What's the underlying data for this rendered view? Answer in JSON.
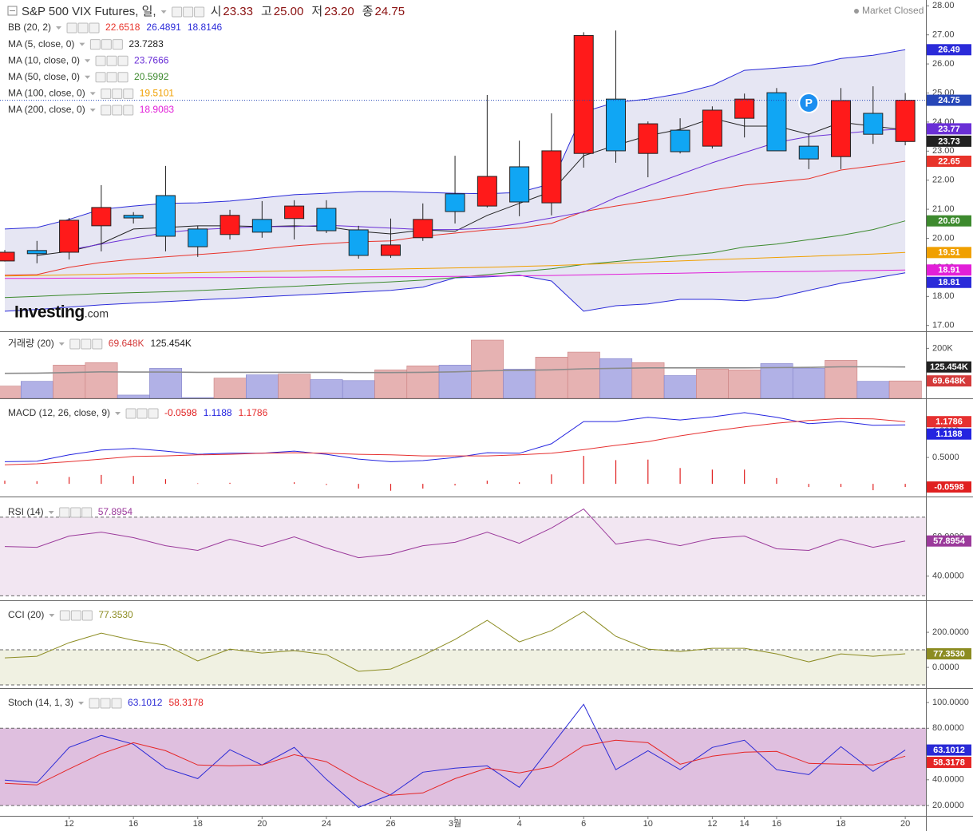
{
  "status": "Market Closed",
  "logo": [
    "Investing",
    ".com"
  ],
  "marker": {
    "label": "P"
  },
  "chart_data": [
    {
      "type": "candlestick",
      "title": "S&P 500 VIX Futures, 일,",
      "ohlc_labels": [
        {
          "name": "시",
          "label": "23.33"
        },
        {
          "name": "고",
          "label": "25.00"
        },
        {
          "name": "저",
          "label": "23.20"
        },
        {
          "name": "종",
          "label": "24.75"
        }
      ],
      "categories": [
        null,
        null,
        "12",
        null,
        "16",
        null,
        "18",
        null,
        "20",
        null,
        "24",
        null,
        "26",
        null,
        "3월",
        null,
        "4",
        null,
        "6",
        null,
        "10",
        null,
        "12",
        "14",
        "16",
        null,
        "18",
        null,
        "20"
      ],
      "open": [
        19.22,
        19.58,
        19.52,
        20.43,
        20.79,
        21.47,
        20.32,
        20.13,
        20.65,
        20.68,
        21.03,
        20.29,
        19.41,
        20.02,
        21.53,
        21.11,
        22.46,
        21.22,
        22.92,
        24.79,
        22.92,
        23.72,
        23.17,
        24.13,
        25.01,
        23.17,
        22.81,
        24.3,
        23.33
      ],
      "high": [
        19.6,
        19.91,
        20.7,
        21.83,
        20.9,
        22.49,
        20.43,
        20.98,
        21.28,
        21.31,
        21.31,
        20.43,
        20.68,
        21.2,
        22.84,
        24.93,
        23.36,
        24.3,
        27.09,
        27.15,
        24.02,
        24.13,
        24.54,
        24.98,
        25.17,
        23.61,
        25.17,
        25.23,
        25.0
      ],
      "low": [
        19.2,
        19.14,
        19.27,
        19.55,
        20.51,
        19.55,
        19.36,
        19.96,
        20.02,
        19.96,
        20.18,
        19.3,
        19.33,
        19.91,
        20.51,
        21.06,
        20.76,
        20.79,
        22.43,
        22.6,
        22.1,
        22.92,
        23.09,
        23.47,
        23.01,
        22.38,
        22.38,
        23.25,
        23.2
      ],
      "close": [
        19.52,
        19.47,
        20.62,
        21.06,
        20.7,
        20.07,
        19.71,
        20.79,
        20.21,
        21.11,
        20.26,
        19.41,
        19.77,
        20.65,
        20.92,
        22.13,
        21.25,
        23.01,
        26.98,
        23.01,
        23.94,
        22.98,
        24.41,
        24.79,
        23.01,
        22.73,
        24.74,
        23.58,
        24.75
      ],
      "up_color": "#ff1a1a",
      "down_color": "#10a6f4",
      "price_line_color": "#2747b8",
      "ylim": [
        16.8,
        28.2
      ],
      "yticks": [
        {
          "value": 17,
          "label": "17.00"
        },
        {
          "value": 18,
          "label": "18.00"
        },
        {
          "value": 19,
          "label": "19.00"
        },
        {
          "value": 20,
          "label": "20.00"
        },
        {
          "value": 21,
          "label": "21.00"
        },
        {
          "value": 22,
          "label": "22.00"
        },
        {
          "value": 23,
          "label": "23.00"
        },
        {
          "value": 24,
          "label": "24.00"
        },
        {
          "value": 25,
          "label": "25.00"
        },
        {
          "value": 26,
          "label": "26.00"
        },
        {
          "value": 27,
          "label": "27.00"
        },
        {
          "value": 28,
          "label": "28.00"
        }
      ],
      "overlays": [
        {
          "name": "BB (20, 2)",
          "fill": "#e6e6f3",
          "series": [
            {
              "color": "#e8332a",
              "axis_label": "22.65",
              "values": [
                18.73,
                18.75,
                19.0,
                19.17,
                19.28,
                19.36,
                19.44,
                19.52,
                19.63,
                19.74,
                19.82,
                19.88,
                19.91,
                20.07,
                20.18,
                20.29,
                20.35,
                20.51,
                20.92,
                21.11,
                21.28,
                21.47,
                21.66,
                21.83,
                21.94,
                22.05,
                22.35,
                22.49,
                22.6518
              ]
            },
            {
              "color": "#2b2bd9",
              "axis_label": "26.49",
              "values": [
                20.32,
                20.37,
                20.65,
                21.0,
                21.11,
                21.2,
                21.22,
                21.28,
                21.39,
                21.5,
                21.55,
                21.61,
                21.61,
                21.58,
                21.55,
                21.53,
                21.58,
                21.88,
                24.35,
                24.68,
                24.79,
                24.98,
                25.26,
                25.78,
                25.86,
                25.94,
                26.19,
                26.3,
                26.4891
              ]
            },
            {
              "color": "#2b2bd9",
              "axis_label": "18.81",
              "values": [
                17.49,
                17.55,
                17.63,
                17.71,
                17.77,
                17.82,
                17.88,
                17.93,
                17.99,
                18.04,
                18.1,
                18.15,
                18.21,
                18.32,
                18.64,
                18.67,
                18.73,
                18.53,
                17.49,
                17.68,
                17.74,
                17.9,
                17.9,
                17.85,
                17.96,
                18.21,
                18.45,
                18.62,
                18.8146
              ]
            }
          ]
        },
        {
          "name": "MA (5, close, 0)",
          "series": [
            {
              "color": "#222222",
              "axis_label": "23.73",
              "values": [
                null,
                19.41,
                19.55,
                19.82,
                20.32,
                20.37,
                20.43,
                20.43,
                20.4,
                20.43,
                20.4,
                20.24,
                20.15,
                20.29,
                20.24,
                20.79,
                21.2,
                21.61,
                22.84,
                23.2,
                23.53,
                23.75,
                24.13,
                23.86,
                23.86,
                23.58,
                23.99,
                23.86,
                23.7283
              ]
            }
          ]
        },
        {
          "name": "MA (10, close, 0)",
          "series": [
            {
              "color": "#6a2fd6",
              "axis_label": "23.77",
              "values": [
                null,
                null,
                19.6,
                19.8,
                20.0,
                20.2,
                20.3,
                20.35,
                20.4,
                20.4,
                20.45,
                20.4,
                20.35,
                20.3,
                20.3,
                20.35,
                20.5,
                20.7,
                20.9,
                21.4,
                21.8,
                22.2,
                22.6,
                22.95,
                23.3,
                23.5,
                23.6,
                23.7,
                23.7666
              ]
            }
          ]
        },
        {
          "name": "MA (50, close, 0)",
          "series": [
            {
              "color": "#3d8a2e",
              "axis_label": "20.60",
              "values": [
                17.96,
                18.0,
                18.05,
                18.1,
                18.13,
                18.16,
                18.2,
                18.25,
                18.3,
                18.35,
                18.4,
                18.45,
                18.5,
                18.56,
                18.65,
                18.75,
                18.85,
                18.95,
                19.1,
                19.2,
                19.3,
                19.4,
                19.5,
                19.7,
                19.8,
                19.95,
                20.1,
                20.3,
                20.5992
              ]
            }
          ]
        },
        {
          "name": "MA (100, close, 0)",
          "series": [
            {
              "color": "#f0a000",
              "axis_label": "19.51",
              "values": [
                18.7,
                18.72,
                18.74,
                18.76,
                18.78,
                18.8,
                18.82,
                18.84,
                18.86,
                18.88,
                18.9,
                18.92,
                18.94,
                18.96,
                18.98,
                19.0,
                19.03,
                19.06,
                19.1,
                19.14,
                19.18,
                19.22,
                19.26,
                19.3,
                19.34,
                19.38,
                19.42,
                19.46,
                19.5101
              ]
            }
          ]
        },
        {
          "name": "MA (200, close, 0)",
          "series": [
            {
              "color": "#e21fd8",
              "axis_label": "18.91",
              "values": [
                18.62,
                18.62,
                18.63,
                18.63,
                18.64,
                18.64,
                18.65,
                18.65,
                18.66,
                18.66,
                18.67,
                18.67,
                18.68,
                18.68,
                18.69,
                18.7,
                18.71,
                18.72,
                18.74,
                18.76,
                18.78,
                18.8,
                18.82,
                18.84,
                18.85,
                18.86,
                18.88,
                18.89,
                18.9083
              ]
            }
          ]
        }
      ]
    },
    {
      "type": "bar",
      "title": "거래량 (20)",
      "ylim": [
        0,
        265000
      ],
      "yticks": [
        {
          "value": 200000,
          "label": "200K"
        }
      ],
      "series": [
        {
          "kind": "bar",
          "color": "#d43a3a",
          "up_color": "#e6b2b2",
          "down_color": "#b1b1e6",
          "header_label": "69.648K",
          "axis_label": "69.648K",
          "values": [
            49000,
            68000,
            133000,
            143000,
            13000,
            120000,
            3000,
            81000,
            94000,
            97000,
            75000,
            71000,
            114000,
            130000,
            133000,
            233000,
            117000,
            165000,
            185000,
            159000,
            143000,
            91000,
            117000,
            114000,
            139000,
            120000,
            152000,
            68000,
            69648
          ]
        },
        {
          "kind": "line",
          "color": "#222222",
          "line_color": "#8c8c8c",
          "header_label": "125.454K",
          "axis_label": "125.454K",
          "values": [
            100000,
            101000,
            103000,
            106000,
            105000,
            105000,
            104000,
            104000,
            104000,
            104000,
            104000,
            103000,
            103000,
            104000,
            106000,
            110000,
            112000,
            114000,
            118000,
            120000,
            122000,
            122000,
            122000,
            122000,
            123000,
            124000,
            126000,
            126000,
            125454
          ]
        }
      ]
    },
    {
      "type": "line",
      "title": "MACD (12, 26, close, 9)",
      "ylim": [
        -0.24,
        1.56
      ],
      "yticks": [
        {
          "value": 0.5,
          "label": "0.5000"
        },
        {
          "value": 1,
          "label": "1.0000"
        }
      ],
      "series": [
        {
          "kind": "histogram",
          "color": "#e02020",
          "values": [
            0.06,
            0.05,
            0.13,
            0.17,
            0.15,
            0.09,
            0.01,
            0.02,
            0.0,
            0.03,
            -0.02,
            -0.09,
            -0.13,
            -0.09,
            -0.03,
            0.06,
            0.03,
            0.18,
            0.53,
            0.45,
            0.46,
            0.3,
            0.27,
            0.27,
            0.11,
            -0.06,
            -0.06,
            -0.12,
            -0.0598
          ]
        },
        {
          "kind": "line",
          "color": "#2424e0",
          "values": [
            0.42,
            0.43,
            0.55,
            0.64,
            0.67,
            0.62,
            0.56,
            0.58,
            0.58,
            0.62,
            0.56,
            0.47,
            0.42,
            0.44,
            0.5,
            0.59,
            0.58,
            0.76,
            1.18,
            1.18,
            1.26,
            1.21,
            1.27,
            1.35,
            1.26,
            1.14,
            1.18,
            1.11,
            1.1188
          ]
        },
        {
          "kind": "line",
          "color": "#e63030",
          "values": [
            0.36,
            0.38,
            0.42,
            0.47,
            0.52,
            0.53,
            0.55,
            0.56,
            0.58,
            0.59,
            0.58,
            0.56,
            0.55,
            0.53,
            0.53,
            0.53,
            0.55,
            0.58,
            0.65,
            0.73,
            0.8,
            0.91,
            1.0,
            1.08,
            1.15,
            1.2,
            1.24,
            1.23,
            1.1786
          ]
        }
      ]
    },
    {
      "type": "line",
      "title": "RSI (14)",
      "ylim": [
        27.7,
        78.5
      ],
      "yticks": [
        {
          "value": 40,
          "label": "40.0000"
        },
        {
          "value": 60,
          "label": "60.0000"
        }
      ],
      "bands": [
        30,
        70
      ],
      "band_fill": "#f2e6f2",
      "series": [
        {
          "kind": "line",
          "color": "#9b3a9b",
          "values": [
            55.1,
            54.7,
            60.4,
            62.4,
            59.6,
            55.5,
            53.1,
            58.8,
            55.1,
            60.0,
            54.3,
            49.4,
            51.1,
            55.5,
            57.2,
            62.4,
            56.7,
            64.5,
            74.2,
            56.3,
            58.8,
            55.5,
            59.2,
            60.4,
            53.9,
            53.1,
            58.8,
            54.7,
            57.8954
          ]
        }
      ]
    },
    {
      "type": "line",
      "title": "CCI (20)",
      "ylim": [
        -118,
        364
      ],
      "yticks": [
        {
          "value": 0,
          "label": "0.0000"
        },
        {
          "value": 200,
          "label": "200.0000"
        }
      ],
      "bands": [
        -100,
        100
      ],
      "band_fill": "#f0f1e2",
      "series": [
        {
          "kind": "line",
          "color": "#8c8c22",
          "header_label": "77.3530",
          "axis_label": "77.3530",
          "values": [
            54.5,
            63.6,
            140.9,
            195.5,
            154.5,
            127.3,
            36.4,
            104.5,
            81.8,
            95.5,
            72.7,
            -22.7,
            -9.1,
            68.2,
            159.1,
            268.2,
            145.5,
            209.1,
            318.2,
            177.3,
            104.5,
            90.9,
            109.1,
            109.1,
            77.3,
            31.8,
            77.3,
            63.6,
            77.353
          ]
        }
      ]
    },
    {
      "type": "line",
      "title": "Stoch (14, 1, 3)",
      "ylim": [
        12,
        108.7
      ],
      "yticks": [
        {
          "value": 20,
          "label": "20.0000"
        },
        {
          "value": 40,
          "label": "40.0000"
        },
        {
          "value": 80,
          "label": "80.0000"
        },
        {
          "value": 100,
          "label": "100.0000"
        }
      ],
      "bands": [
        20,
        80
      ],
      "band_fill": "#dfbfdf",
      "series": [
        {
          "kind": "line",
          "color": "#2a2ad6",
          "values": [
            39.7,
            37.8,
            65.1,
            74.4,
            67.6,
            49.0,
            40.9,
            63.3,
            51.5,
            65.1,
            40.3,
            18.6,
            28.5,
            45.9,
            49.0,
            50.8,
            34.1,
            66.4,
            98.6,
            47.8,
            62.6,
            47.8,
            65.1,
            70.7,
            47.8,
            44.0,
            65.7,
            46.5,
            63.1012
          ]
        },
        {
          "kind": "line",
          "color": "#e52525",
          "values": [
            37.2,
            36.0,
            48.4,
            60.2,
            68.8,
            62.6,
            51.5,
            50.8,
            51.5,
            59.5,
            54.0,
            39.7,
            27.9,
            29.8,
            40.9,
            49.0,
            45.3,
            50.2,
            66.4,
            70.7,
            68.8,
            52.1,
            58.3,
            61.4,
            62.0,
            52.7,
            52.1,
            51.5,
            58.3178
          ]
        }
      ]
    }
  ]
}
